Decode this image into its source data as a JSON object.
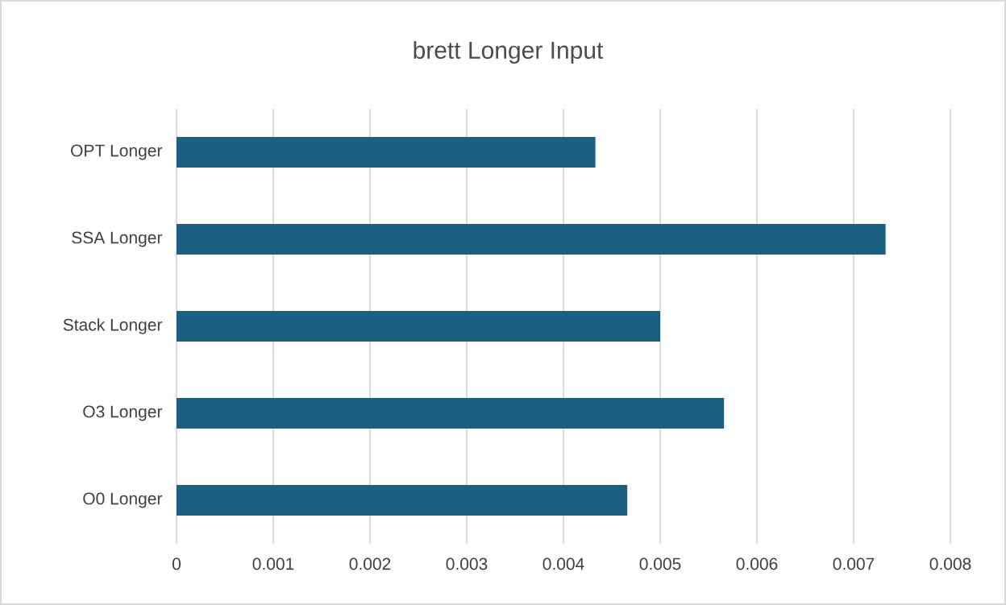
{
  "chart_data": {
    "type": "bar",
    "orientation": "horizontal",
    "title": "brett Longer Input",
    "categories": [
      "OPT Longer",
      "SSA Longer",
      "Stack Longer",
      "O3 Longer",
      "O0 Longer"
    ],
    "values": [
      0.00433,
      0.00733,
      0.005,
      0.00566,
      0.00466
    ],
    "color": "#1b5f81",
    "xlim": [
      0,
      0.008
    ],
    "xticks": [
      0,
      0.001,
      0.002,
      0.003,
      0.004,
      0.005,
      0.006,
      0.007,
      0.008
    ],
    "grid": "x"
  }
}
